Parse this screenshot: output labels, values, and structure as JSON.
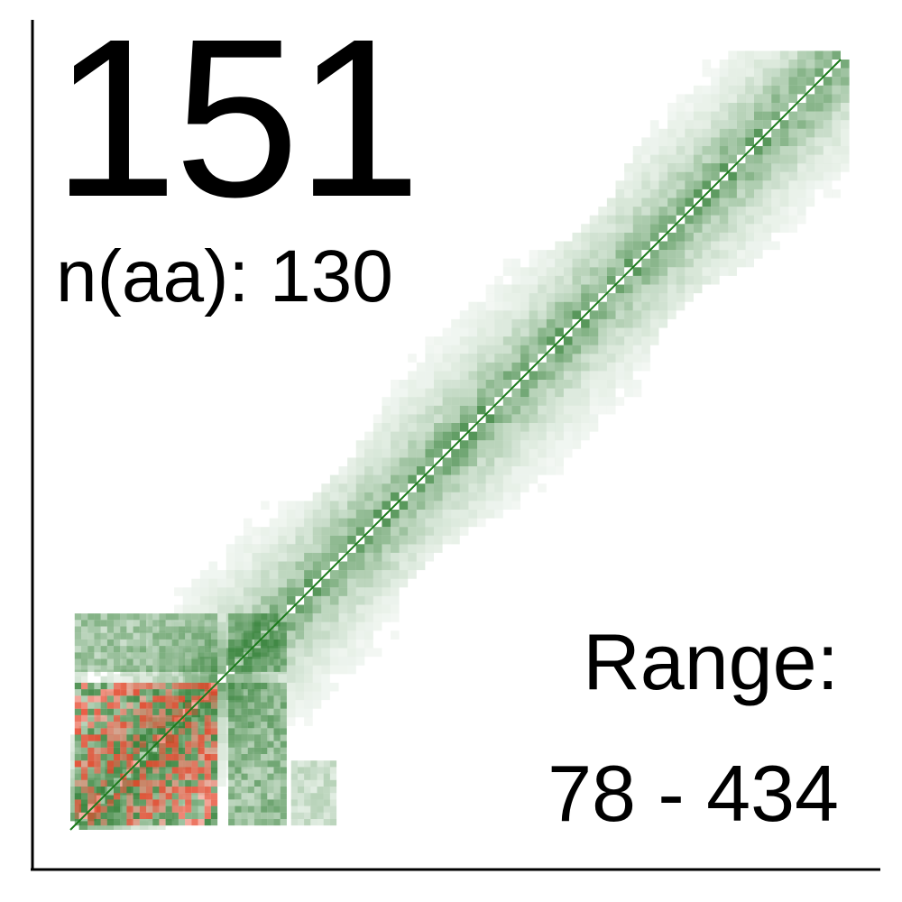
{
  "headline_number": "151",
  "naa_text": "n(aa): 130",
  "range_label": "Range:",
  "range_value": "78 - 434",
  "chart_data": {
    "type": "heatmap",
    "title": "",
    "xlabel": "",
    "ylabel": "",
    "range": [
      78,
      434
    ],
    "diagonal": {
      "from": 78,
      "to": 434,
      "color": "#1a7a1a"
    },
    "colors": {
      "low": "#ffffff",
      "mid": "#2e7d32",
      "high": "#e53a1e",
      "axis": "#000000"
    },
    "dense_regions": [
      {
        "x": [
          80,
          146
        ],
        "y": [
          80,
          146
        ],
        "intensity": 0.85,
        "color": "high"
      },
      {
        "x": [
          80,
          146
        ],
        "y": [
          146,
          151
        ],
        "intensity": 0.2,
        "color": "mid"
      },
      {
        "x": [
          151,
          176
        ],
        "y": [
          80,
          146
        ],
        "intensity": 0.7,
        "color": "mid"
      },
      {
        "x": [
          80,
          146
        ],
        "y": [
          151,
          176
        ],
        "intensity": 0.6,
        "color": "mid"
      },
      {
        "x": [
          151,
          176
        ],
        "y": [
          151,
          176
        ],
        "intensity": 0.7,
        "color": "mid"
      },
      {
        "x": [
          180,
          200
        ],
        "y": [
          80,
          110
        ],
        "intensity": 0.35,
        "color": "mid"
      }
    ]
  }
}
